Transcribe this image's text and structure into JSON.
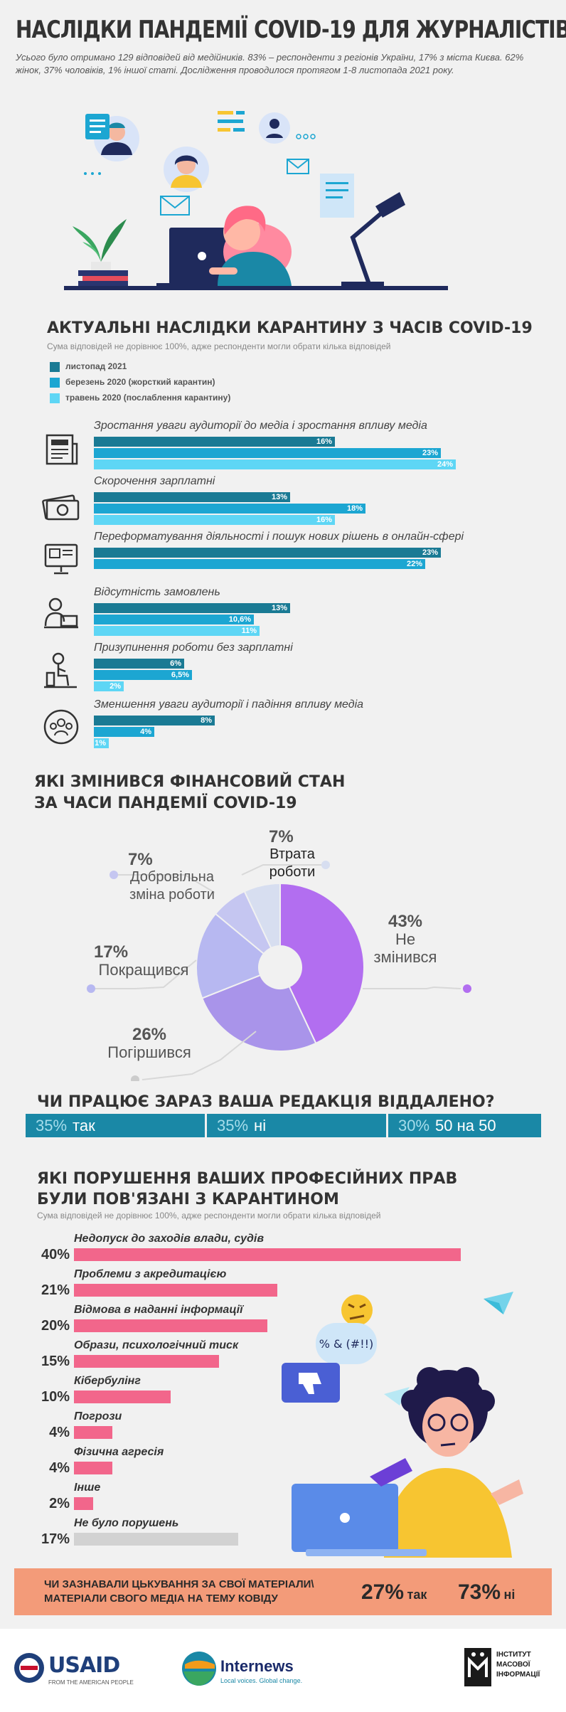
{
  "header": {
    "title": "НАСЛІДКИ ПАНДЕМІЇ COVID-19 ДЛЯ ЖУРНАЛІСТІВ",
    "intro": "Усього було отримано 129 відповідей від медійників. 83% – респонденти з регіонів України, 17% з міста Києва. 62% жінок, 37% чоловіків, 1% іншої статі. Дослідження проводилося протягом 1-8 листопада 2021 року."
  },
  "illustration": {
    "chat_text": "% & (#!!)"
  },
  "colors": {
    "nov2021": "#1a7a94",
    "mar2020": "#1ca6d2",
    "may2020": "#5ed6f5",
    "pie": [
      "#b26ef0",
      "#a994ea",
      "#b7b8f1",
      "#c5c6f1",
      "#d7def0"
    ],
    "redaction": "#1a88a6",
    "violations": "#f2668b",
    "none": "#d2d2d2",
    "banner": "#f39b79"
  },
  "chart_data": [
    {
      "type": "bar",
      "title": "АКТУАЛЬНІ НАСЛІДКИ КАРАНТИНУ З ЧАСІВ COVID-19",
      "subtitle": "Сума відповідей не дорівнює 100%, адже респонденти могли обрати кілька відповідей",
      "categories": [
        "Зростання уваги аудиторії до медіа і зростання впливу медіа",
        "Скорочення зарплатні",
        "Переформатування діяльності і пошук нових рішень в онлайн-сфері",
        "Відсутність замовлень",
        "Призупинення роботи без зарплатні",
        "Зменшення уваги аудиторії і падіння впливу медіа"
      ],
      "series": [
        {
          "name": "листопад 2021",
          "values": [
            16,
            13,
            23,
            13,
            6,
            8
          ],
          "labels": [
            "16%",
            "13%",
            "23%",
            "13%",
            "6%",
            "8%"
          ]
        },
        {
          "name": "березень 2020 (жорсткий карантин)",
          "values": [
            23,
            18,
            22,
            10.6,
            6.5,
            4
          ],
          "labels": [
            "23%",
            "18%",
            "22%",
            "10,6%",
            "6,5%",
            "4%"
          ]
        },
        {
          "name": "травень 2020 (послаблення карантину)",
          "values": [
            24,
            16,
            null,
            11,
            2,
            1
          ],
          "labels": [
            "24%",
            "16%",
            "",
            "11%",
            "2%",
            "1%"
          ]
        }
      ]
    },
    {
      "type": "pie",
      "title_line1": "ЯКІ ЗМІНИВСЯ ФІНАНСОВИЙ СТАН",
      "title_line2": "ЗА ЧАСИ ПАНДЕМІЇ COVID-19",
      "slices": [
        {
          "label": "Не змінився",
          "value": 43,
          "pct": "43%"
        },
        {
          "label": "Погіршився",
          "value": 26,
          "pct": "26%"
        },
        {
          "label": "Покращився",
          "value": 17,
          "pct": "17%"
        },
        {
          "label": "Добровільна зміна роботи",
          "value": 7,
          "pct": "7%"
        },
        {
          "label": "Втрата роботи",
          "value": 7,
          "pct": "7%"
        }
      ]
    },
    {
      "type": "bar",
      "title": "ЧИ ПРАЦЮЄ ЗАРАЗ ВАША РЕДАКЦІЯ ВІДДАЛЕНО?",
      "segments": [
        {
          "pct": "35%",
          "label": "так",
          "value": 35
        },
        {
          "pct": "35%",
          "label": "ні",
          "value": 35
        },
        {
          "pct": "30%",
          "label": "50 на 50",
          "value": 30
        }
      ]
    },
    {
      "type": "bar",
      "title_line1": "ЯКІ ПОРУШЕННЯ ВАШИХ ПРОФЕСІЙНИХ ПРАВ",
      "title_line2": "БУЛИ ПОВ'ЯЗАНІ З КАРАНТИНОМ",
      "subtitle": "Сума відповідей не дорівнює 100%, адже респонденти могли обрати кілька відповідей",
      "categories": [
        "Недопуск до заходів влади, судів",
        "Проблеми з акредитацією",
        "Відмова в наданні інформації",
        "Образи, психологічний тиск",
        "Кібербулінг",
        "Погрози",
        "Фізична агресія",
        "Інше",
        "Не було порушень"
      ],
      "values": [
        40,
        21,
        20,
        15,
        10,
        4,
        4,
        2,
        17
      ],
      "labels": [
        "40%",
        "21%",
        "20%",
        "15%",
        "10%",
        "4%",
        "4%",
        "2%",
        "17%"
      ]
    },
    {
      "type": "bar",
      "question_line1": "ЧИ ЗАЗНАВАЛИ ЦЬКУВАННЯ  ЗА СВОЇ МАТЕРІАЛИ\\",
      "question_line2": "МАТЕРІАЛИ СВОГО МЕДІА НА ТЕМУ КОВІДУ",
      "answers": [
        {
          "pct": "27%",
          "label": "так",
          "value": 27
        },
        {
          "pct": "73%",
          "label": "ні",
          "value": 73
        }
      ]
    }
  ],
  "footer": {
    "usaid_name": "USAID",
    "usaid_tagline": "FROM THE AMERICAN PEOPLE",
    "internews_name": "Internews",
    "internews_tagline": "Local voices. Global change.",
    "imi_line1": "ІНСТИТУТ",
    "imi_line2": "МАСОВОЇ",
    "imi_line3": "ІНФОРМАЦІЇ"
  }
}
